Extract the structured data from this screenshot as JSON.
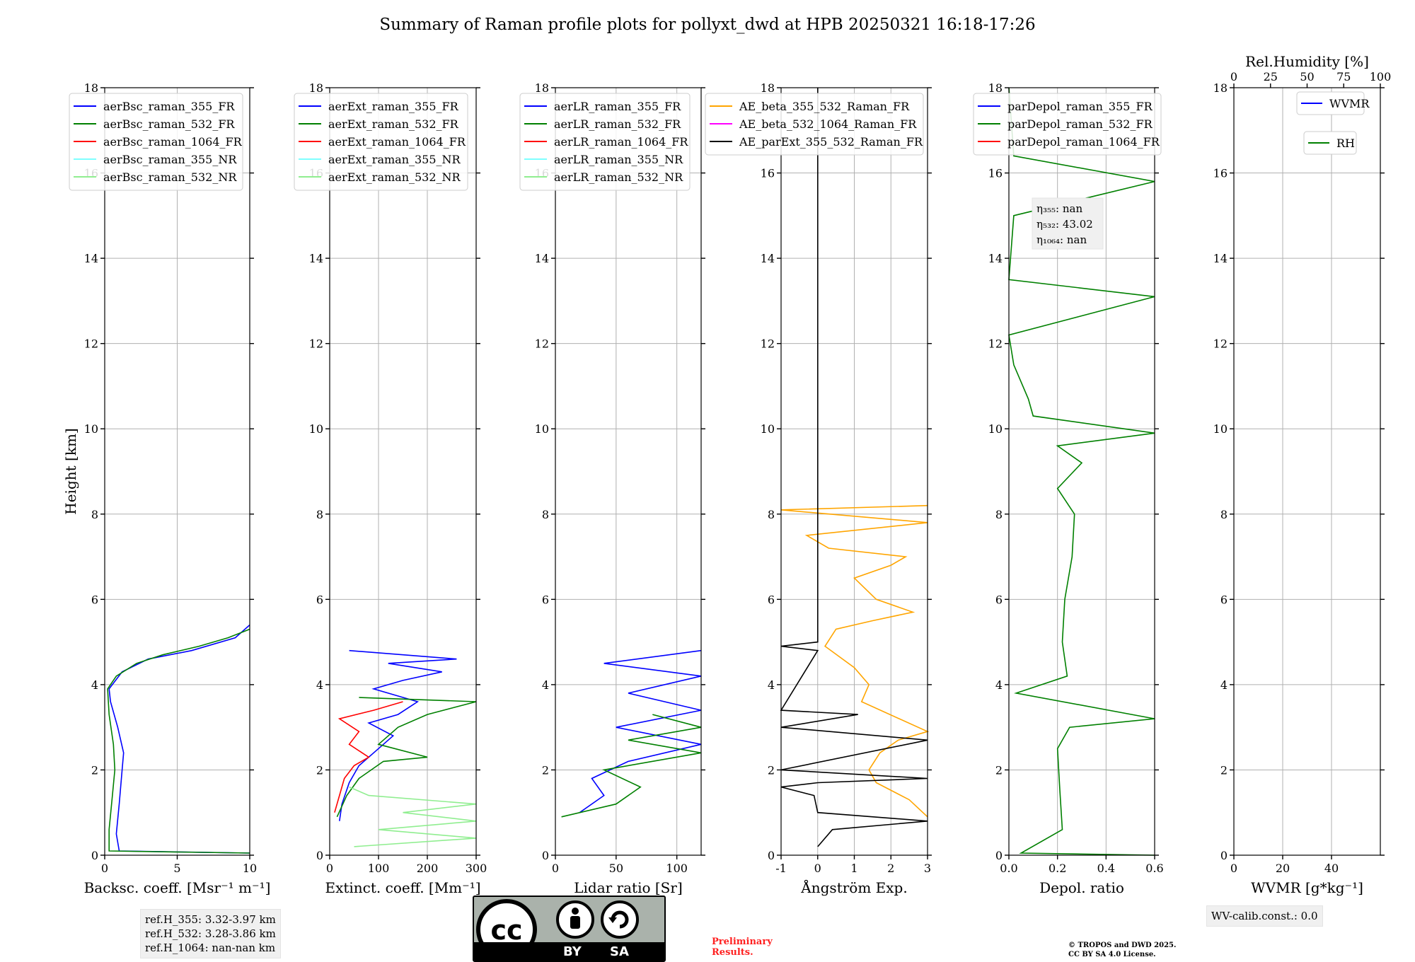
{
  "title": "Summary of Raman profile plots for pollyxt_dwd at HPB 20250321 16:18-17:26",
  "colors": {
    "blue": "#0000ff",
    "green": "#008000",
    "red": "#ff0000",
    "cyan": "#7fffff",
    "lightgreen": "#90ee90",
    "orange": "#ffa500",
    "magenta": "#ff00ff",
    "black": "#000000"
  },
  "chart_data": [
    {
      "type": "line",
      "name": "backscatter",
      "xlabel": "Backsc. coeff. [Msr⁻¹ m⁻¹]",
      "ylabel": "Height [km]",
      "xlim": [
        0,
        10
      ],
      "ylim": [
        0,
        18
      ],
      "xticks": [
        0,
        5,
        10
      ],
      "yticks": [
        0,
        2,
        4,
        6,
        8,
        10,
        12,
        14,
        16,
        18
      ],
      "grid": true,
      "legend": "upper-left",
      "series": [
        {
          "name": "aerBsc_raman_355_FR",
          "color": "blue",
          "points": [
            [
              10,
              0.05
            ],
            [
              1.0,
              0.1
            ],
            [
              0.8,
              0.5
            ],
            [
              1.0,
              1.2
            ],
            [
              1.2,
              2.0
            ],
            [
              1.3,
              2.4
            ],
            [
              0.9,
              3.0
            ],
            [
              0.4,
              3.6
            ],
            [
              0.3,
              3.9
            ],
            [
              1.2,
              4.3
            ],
            [
              3.0,
              4.6
            ],
            [
              6.0,
              4.8
            ],
            [
              9.0,
              5.1
            ],
            [
              10,
              5.4
            ]
          ]
        },
        {
          "name": "aerBsc_raman_532_FR",
          "color": "green",
          "points": [
            [
              10,
              0.05
            ],
            [
              0.3,
              0.1
            ],
            [
              0.3,
              0.6
            ],
            [
              0.5,
              1.3
            ],
            [
              0.7,
              2.0
            ],
            [
              0.6,
              2.6
            ],
            [
              0.3,
              3.3
            ],
            [
              0.2,
              3.9
            ],
            [
              0.8,
              4.2
            ],
            [
              2.2,
              4.5
            ],
            [
              4.0,
              4.7
            ],
            [
              6.5,
              4.9
            ],
            [
              8.5,
              5.1
            ],
            [
              10,
              5.3
            ]
          ]
        },
        {
          "name": "aerBsc_raman_1064_FR",
          "color": "red",
          "points": []
        },
        {
          "name": "aerBsc_raman_355_NR",
          "color": "cyan",
          "points": []
        },
        {
          "name": "aerBsc_raman_532_NR",
          "color": "lightgreen",
          "points": []
        }
      ]
    },
    {
      "type": "line",
      "name": "extinction",
      "xlabel": "Extinct. coeff. [Mm⁻¹]",
      "xlim": [
        0,
        300
      ],
      "ylim": [
        0,
        18
      ],
      "xticks": [
        0,
        100,
        200,
        300
      ],
      "yticks": [
        0,
        2,
        4,
        6,
        8,
        10,
        12,
        14,
        16,
        18
      ],
      "grid": true,
      "legend": "upper-left",
      "series": [
        {
          "name": "aerExt_raman_355_FR",
          "color": "blue",
          "points": [
            [
              20,
              0.8
            ],
            [
              25,
              1.2
            ],
            [
              40,
              1.7
            ],
            [
              60,
              2.1
            ],
            [
              100,
              2.5
            ],
            [
              130,
              2.8
            ],
            [
              80,
              3.1
            ],
            [
              140,
              3.3
            ],
            [
              180,
              3.6
            ],
            [
              90,
              3.9
            ],
            [
              150,
              4.1
            ],
            [
              230,
              4.3
            ],
            [
              120,
              4.5
            ],
            [
              260,
              4.6
            ],
            [
              40,
              4.8
            ]
          ]
        },
        {
          "name": "aerExt_raman_532_FR",
          "color": "green",
          "points": [
            [
              15,
              0.9
            ],
            [
              35,
              1.4
            ],
            [
              60,
              1.8
            ],
            [
              110,
              2.2
            ],
            [
              200,
              2.3
            ],
            [
              100,
              2.6
            ],
            [
              140,
              3.0
            ],
            [
              200,
              3.3
            ],
            [
              300,
              3.6
            ],
            [
              60,
              3.7
            ]
          ]
        },
        {
          "name": "aerExt_raman_1064_FR",
          "color": "red",
          "points": [
            [
              10,
              1.0
            ],
            [
              20,
              1.4
            ],
            [
              30,
              1.8
            ],
            [
              50,
              2.1
            ],
            [
              80,
              2.3
            ],
            [
              40,
              2.6
            ],
            [
              60,
              2.9
            ],
            [
              20,
              3.2
            ],
            [
              90,
              3.4
            ],
            [
              150,
              3.6
            ]
          ]
        },
        {
          "name": "aerExt_raman_355_NR",
          "color": "cyan",
          "points": []
        },
        {
          "name": "aerExt_raman_532_NR",
          "color": "lightgreen",
          "points": [
            [
              50,
              0.2
            ],
            [
              300,
              0.4
            ],
            [
              100,
              0.6
            ],
            [
              300,
              0.8
            ],
            [
              150,
              1.0
            ],
            [
              300,
              1.2
            ],
            [
              80,
              1.4
            ],
            [
              40,
              1.6
            ]
          ]
        }
      ]
    },
    {
      "type": "line",
      "name": "lidar-ratio",
      "xlabel": "Lidar ratio [Sr]",
      "xlim": [
        0,
        120
      ],
      "ylim": [
        0,
        18
      ],
      "xticks": [
        0,
        50,
        100
      ],
      "yticks": [
        0,
        2,
        4,
        6,
        8,
        10,
        12,
        14,
        16,
        18
      ],
      "grid": true,
      "legend": "upper-left",
      "series": [
        {
          "name": "aerLR_raman_355_FR",
          "color": "blue",
          "points": [
            [
              20,
              1.0
            ],
            [
              40,
              1.4
            ],
            [
              30,
              1.8
            ],
            [
              60,
              2.2
            ],
            [
              120,
              2.6
            ],
            [
              50,
              3.0
            ],
            [
              120,
              3.4
            ],
            [
              60,
              3.8
            ],
            [
              120,
              4.2
            ],
            [
              40,
              4.5
            ],
            [
              120,
              4.8
            ]
          ]
        },
        {
          "name": "aerLR_raman_532_FR",
          "color": "green",
          "points": [
            [
              5,
              0.9
            ],
            [
              50,
              1.2
            ],
            [
              70,
              1.6
            ],
            [
              40,
              2.0
            ],
            [
              120,
              2.4
            ],
            [
              60,
              2.7
            ],
            [
              120,
              3.0
            ],
            [
              80,
              3.3
            ]
          ]
        },
        {
          "name": "aerLR_raman_1064_FR",
          "color": "red",
          "points": []
        },
        {
          "name": "aerLR_raman_355_NR",
          "color": "cyan",
          "points": []
        },
        {
          "name": "aerLR_raman_532_NR",
          "color": "lightgreen",
          "points": []
        }
      ]
    },
    {
      "type": "line",
      "name": "angstrom",
      "xlabel": "Ångström Exp.",
      "xlim": [
        -1,
        3
      ],
      "ylim": [
        0,
        18
      ],
      "xticks": [
        -1,
        0,
        1,
        2,
        3
      ],
      "yticks": [
        0,
        2,
        4,
        6,
        8,
        10,
        12,
        14,
        16,
        18
      ],
      "grid": true,
      "legend": "upper-right",
      "series": [
        {
          "name": "AE_beta_355_532_Raman_FR",
          "color": "orange",
          "points": [
            [
              3.0,
              0.9
            ],
            [
              2.5,
              1.3
            ],
            [
              1.6,
              1.7
            ],
            [
              1.4,
              2.0
            ],
            [
              1.7,
              2.4
            ],
            [
              2.2,
              2.7
            ],
            [
              3.0,
              2.9
            ],
            [
              1.2,
              3.6
            ],
            [
              1.4,
              4.0
            ],
            [
              1.0,
              4.4
            ],
            [
              0.2,
              4.9
            ],
            [
              0.5,
              5.3
            ],
            [
              1.5,
              5.5
            ],
            [
              2.6,
              5.7
            ],
            [
              1.6,
              6.0
            ],
            [
              1.0,
              6.5
            ],
            [
              2.0,
              6.8
            ],
            [
              2.4,
              7.0
            ],
            [
              0.3,
              7.2
            ],
            [
              -0.3,
              7.5
            ],
            [
              3.0,
              7.8
            ],
            [
              -1.0,
              8.1
            ],
            [
              3.0,
              8.2
            ]
          ]
        },
        {
          "name": "AE_beta_532_1064_Raman_FR",
          "color": "magenta",
          "points": []
        },
        {
          "name": "AE_parExt_355_532_Raman_FR",
          "color": "black",
          "points": [
            [
              0,
              0.2
            ],
            [
              0.4,
              0.6
            ],
            [
              3.0,
              0.8
            ],
            [
              0,
              1.0
            ],
            [
              -0.1,
              1.4
            ],
            [
              -1.0,
              1.6
            ],
            [
              0,
              1.7
            ],
            [
              3.0,
              1.8
            ],
            [
              -1.0,
              2.0
            ],
            [
              3.0,
              2.7
            ],
            [
              -1.0,
              3.0
            ],
            [
              1.1,
              3.3
            ],
            [
              -1.0,
              3.4
            ],
            [
              0,
              4.8
            ],
            [
              -1.0,
              4.9
            ],
            [
              0,
              5.0
            ],
            [
              0,
              18
            ]
          ]
        }
      ]
    },
    {
      "type": "line",
      "name": "depolarization",
      "xlabel": "Depol. ratio",
      "xlim": [
        0,
        0.6
      ],
      "ylim": [
        0,
        18
      ],
      "xticks": [
        0.0,
        0.2,
        0.4,
        0.6
      ],
      "xtick_labels": [
        "0.0",
        "0.2",
        "0.4",
        "0.6"
      ],
      "yticks": [
        0,
        2,
        4,
        6,
        8,
        10,
        12,
        14,
        16,
        18
      ],
      "grid": true,
      "legend": "upper-left",
      "annotations": [
        "η₃₅₅: nan",
        "η₅₃₂: 43.02",
        "η₁₀₆₄: nan"
      ],
      "series": [
        {
          "name": "parDepol_raman_355_FR",
          "color": "blue",
          "points": []
        },
        {
          "name": "parDepol_raman_532_FR",
          "color": "green",
          "points": [
            [
              0.6,
              0.0
            ],
            [
              0.05,
              0.05
            ],
            [
              0.22,
              0.6
            ],
            [
              0.21,
              1.5
            ],
            [
              0.2,
              2.5
            ],
            [
              0.25,
              3.0
            ],
            [
              0.6,
              3.2
            ],
            [
              0.03,
              3.8
            ],
            [
              0.24,
              4.2
            ],
            [
              0.22,
              5.0
            ],
            [
              0.23,
              6.0
            ],
            [
              0.26,
              7.0
            ],
            [
              0.27,
              8.0
            ],
            [
              0.2,
              8.6
            ],
            [
              0.3,
              9.2
            ],
            [
              0.2,
              9.6
            ],
            [
              0.6,
              9.9
            ],
            [
              0.1,
              10.3
            ],
            [
              0.08,
              10.7
            ],
            [
              0.02,
              11.5
            ],
            [
              0.0,
              12.2
            ],
            [
              0.6,
              13.1
            ],
            [
              0.0,
              13.5
            ],
            [
              0.02,
              15.0
            ],
            [
              0.6,
              15.8
            ],
            [
              0.02,
              16.4
            ],
            [
              0.0,
              18.0
            ]
          ]
        },
        {
          "name": "parDepol_raman_1064_FR",
          "color": "red",
          "points": []
        }
      ]
    },
    {
      "type": "line",
      "name": "wvmr",
      "xlabel": "WVMR [g*kg⁻¹]",
      "x2label": "Rel.Humidity [%]",
      "xlim": [
        0,
        60
      ],
      "x2lim": [
        0,
        100
      ],
      "ylim": [
        0,
        18
      ],
      "xticks": [
        0,
        20,
        40
      ],
      "x2ticks": [
        0,
        25,
        50,
        75,
        100
      ],
      "yticks": [
        0,
        2,
        4,
        6,
        8,
        10,
        12,
        14,
        16,
        18
      ],
      "grid": true,
      "series": [
        {
          "name": "WVMR",
          "color": "blue",
          "points": []
        },
        {
          "name": "RH",
          "color": "green",
          "points": []
        }
      ]
    }
  ],
  "boxes": {
    "ref_heights": [
      "ref.H_355: 3.32-3.97 km",
      "ref.H_532: 3.28-3.86 km",
      "ref.H_1064: nan-nan km"
    ],
    "wv_calib": "WV-calib.const.: 0.0"
  },
  "license": {
    "cc_text": "cc",
    "by": "BY",
    "sa": "SA",
    "preliminary": [
      "Preliminary",
      "Results."
    ],
    "copyright": [
      "© TROPOS and DWD 2025.",
      "CC BY SA 4.0 License."
    ]
  }
}
